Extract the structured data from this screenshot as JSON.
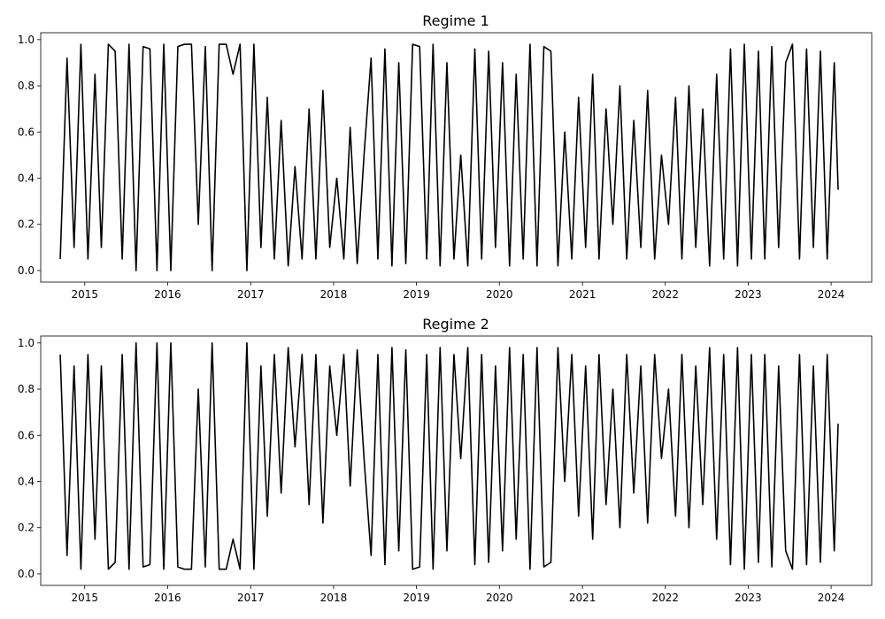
{
  "chart_data": [
    {
      "type": "line",
      "title": "Regime 1",
      "xlabel": "",
      "ylabel": "",
      "xlim": [
        "2014-06-21",
        "2024-06-28"
      ],
      "ylim": [
        -0.05,
        1.03
      ],
      "x_ticks": [
        "2015",
        "2016",
        "2017",
        "2018",
        "2019",
        "2020",
        "2021",
        "2022",
        "2023",
        "2024"
      ],
      "y_ticks": [
        "0.0",
        "0.2",
        "0.4",
        "0.6",
        "0.8",
        "1.0"
      ],
      "grid": false,
      "color": "#000000",
      "x": [
        "2014-09-15",
        "2014-10-15",
        "2014-11-15",
        "2014-12-15",
        "2015-01-15",
        "2015-02-15",
        "2015-03-15",
        "2015-04-15",
        "2015-05-15",
        "2015-06-15",
        "2015-07-15",
        "2015-08-15",
        "2015-09-15",
        "2015-10-15",
        "2015-11-15",
        "2015-12-15",
        "2016-01-15",
        "2016-02-15",
        "2016-03-15",
        "2016-04-15",
        "2016-05-15",
        "2016-06-15",
        "2016-07-15",
        "2016-08-15",
        "2016-09-15",
        "2016-10-15",
        "2016-11-15",
        "2016-12-15",
        "2017-01-15",
        "2017-02-15",
        "2017-03-15",
        "2017-04-15",
        "2017-05-15",
        "2017-06-15",
        "2017-07-15",
        "2017-08-15",
        "2017-09-15",
        "2017-10-15",
        "2017-11-15",
        "2017-12-15",
        "2018-01-15",
        "2018-02-15",
        "2018-03-15",
        "2018-04-15",
        "2018-05-15",
        "2018-06-15",
        "2018-07-15",
        "2018-08-15",
        "2018-09-15",
        "2018-10-15",
        "2018-11-15",
        "2018-12-15",
        "2019-01-15",
        "2019-02-15",
        "2019-03-15",
        "2019-04-15",
        "2019-05-15",
        "2019-06-15",
        "2019-07-15",
        "2019-08-15",
        "2019-09-15",
        "2019-10-15",
        "2019-11-15",
        "2019-12-15",
        "2020-01-15",
        "2020-02-15",
        "2020-03-15",
        "2020-04-15",
        "2020-05-15",
        "2020-06-15",
        "2020-07-15",
        "2020-08-15",
        "2020-09-15",
        "2020-10-15",
        "2020-11-15",
        "2020-12-15",
        "2021-01-15",
        "2021-02-15",
        "2021-03-15",
        "2021-04-15",
        "2021-05-15",
        "2021-06-15",
        "2021-07-15",
        "2021-08-15",
        "2021-09-15",
        "2021-10-15",
        "2021-11-15",
        "2021-12-15",
        "2022-01-15",
        "2022-02-15",
        "2022-03-15",
        "2022-04-15",
        "2022-05-15",
        "2022-06-15",
        "2022-07-15",
        "2022-08-15",
        "2022-09-15",
        "2022-10-15",
        "2022-11-15",
        "2022-12-15",
        "2023-01-15",
        "2023-02-15",
        "2023-03-15",
        "2023-04-15",
        "2023-05-15",
        "2023-06-15",
        "2023-07-15",
        "2023-08-15",
        "2023-09-15",
        "2023-10-15",
        "2023-11-15",
        "2023-12-15",
        "2024-01-15",
        "2024-02-01"
      ],
      "y": [
        0.05,
        0.92,
        0.1,
        0.98,
        0.05,
        0.85,
        0.1,
        0.98,
        0.95,
        0.05,
        0.98,
        0.0,
        0.97,
        0.96,
        0.0,
        0.98,
        0.0,
        0.97,
        0.98,
        0.98,
        0.2,
        0.97,
        0.0,
        0.98,
        0.98,
        0.85,
        0.98,
        0.0,
        0.98,
        0.1,
        0.75,
        0.05,
        0.65,
        0.02,
        0.45,
        0.05,
        0.7,
        0.05,
        0.78,
        0.1,
        0.4,
        0.05,
        0.62,
        0.03,
        0.5,
        0.92,
        0.05,
        0.96,
        0.02,
        0.9,
        0.03,
        0.98,
        0.97,
        0.05,
        0.98,
        0.02,
        0.9,
        0.05,
        0.5,
        0.02,
        0.96,
        0.05,
        0.95,
        0.1,
        0.9,
        0.02,
        0.85,
        0.05,
        0.98,
        0.02,
        0.97,
        0.95,
        0.02,
        0.6,
        0.05,
        0.75,
        0.1,
        0.85,
        0.05,
        0.7,
        0.2,
        0.8,
        0.05,
        0.65,
        0.1,
        0.78,
        0.05,
        0.5,
        0.2,
        0.75,
        0.05,
        0.8,
        0.1,
        0.7,
        0.02,
        0.85,
        0.05,
        0.96,
        0.02,
        0.98,
        0.05,
        0.95,
        0.05,
        0.97,
        0.1,
        0.9,
        0.98,
        0.05,
        0.96,
        0.1,
        0.95,
        0.05,
        0.9,
        0.35
      ]
    },
    {
      "type": "line",
      "title": "Regime 2",
      "xlabel": "",
      "ylabel": "",
      "xlim": [
        "2014-06-21",
        "2024-06-28"
      ],
      "ylim": [
        -0.05,
        1.03
      ],
      "x_ticks": [
        "2015",
        "2016",
        "2017",
        "2018",
        "2019",
        "2020",
        "2021",
        "2022",
        "2023",
        "2024"
      ],
      "y_ticks": [
        "0.0",
        "0.2",
        "0.4",
        "0.6",
        "0.8",
        "1.0"
      ],
      "grid": false,
      "color": "#000000",
      "x": [
        "2014-09-15",
        "2014-10-15",
        "2014-11-15",
        "2014-12-15",
        "2015-01-15",
        "2015-02-15",
        "2015-03-15",
        "2015-04-15",
        "2015-05-15",
        "2015-06-15",
        "2015-07-15",
        "2015-08-15",
        "2015-09-15",
        "2015-10-15",
        "2015-11-15",
        "2015-12-15",
        "2016-01-15",
        "2016-02-15",
        "2016-03-15",
        "2016-04-15",
        "2016-05-15",
        "2016-06-15",
        "2016-07-15",
        "2016-08-15",
        "2016-09-15",
        "2016-10-15",
        "2016-11-15",
        "2016-12-15",
        "2017-01-15",
        "2017-02-15",
        "2017-03-15",
        "2017-04-15",
        "2017-05-15",
        "2017-06-15",
        "2017-07-15",
        "2017-08-15",
        "2017-09-15",
        "2017-10-15",
        "2017-11-15",
        "2017-12-15",
        "2018-01-15",
        "2018-02-15",
        "2018-03-15",
        "2018-04-15",
        "2018-05-15",
        "2018-06-15",
        "2018-07-15",
        "2018-08-15",
        "2018-09-15",
        "2018-10-15",
        "2018-11-15",
        "2018-12-15",
        "2019-01-15",
        "2019-02-15",
        "2019-03-15",
        "2019-04-15",
        "2019-05-15",
        "2019-06-15",
        "2019-07-15",
        "2019-08-15",
        "2019-09-15",
        "2019-10-15",
        "2019-11-15",
        "2019-12-15",
        "2020-01-15",
        "2020-02-15",
        "2020-03-15",
        "2020-04-15",
        "2020-05-15",
        "2020-06-15",
        "2020-07-15",
        "2020-08-15",
        "2020-09-15",
        "2020-10-15",
        "2020-11-15",
        "2020-12-15",
        "2021-01-15",
        "2021-02-15",
        "2021-03-15",
        "2021-04-15",
        "2021-05-15",
        "2021-06-15",
        "2021-07-15",
        "2021-08-15",
        "2021-09-15",
        "2021-10-15",
        "2021-11-15",
        "2021-12-15",
        "2022-01-15",
        "2022-02-15",
        "2022-03-15",
        "2022-04-15",
        "2022-05-15",
        "2022-06-15",
        "2022-07-15",
        "2022-08-15",
        "2022-09-15",
        "2022-10-15",
        "2022-11-15",
        "2022-12-15",
        "2023-01-15",
        "2023-02-15",
        "2023-03-15",
        "2023-04-15",
        "2023-05-15",
        "2023-06-15",
        "2023-07-15",
        "2023-08-15",
        "2023-09-15",
        "2023-10-15",
        "2023-11-15",
        "2023-12-15",
        "2024-01-15",
        "2024-02-01"
      ],
      "y": [
        0.95,
        0.08,
        0.9,
        0.02,
        0.95,
        0.15,
        0.9,
        0.02,
        0.05,
        0.95,
        0.02,
        1.0,
        0.03,
        0.04,
        1.0,
        0.02,
        1.0,
        0.03,
        0.02,
        0.02,
        0.8,
        0.03,
        1.0,
        0.02,
        0.02,
        0.15,
        0.02,
        1.0,
        0.02,
        0.9,
        0.25,
        0.95,
        0.35,
        0.98,
        0.55,
        0.95,
        0.3,
        0.95,
        0.22,
        0.9,
        0.6,
        0.95,
        0.38,
        0.97,
        0.5,
        0.08,
        0.95,
        0.04,
        0.98,
        0.1,
        0.97,
        0.02,
        0.03,
        0.95,
        0.02,
        0.98,
        0.1,
        0.95,
        0.5,
        0.98,
        0.04,
        0.95,
        0.05,
        0.9,
        0.1,
        0.98,
        0.15,
        0.95,
        0.02,
        0.98,
        0.03,
        0.05,
        0.98,
        0.4,
        0.95,
        0.25,
        0.9,
        0.15,
        0.95,
        0.3,
        0.8,
        0.2,
        0.95,
        0.35,
        0.9,
        0.22,
        0.95,
        0.5,
        0.8,
        0.25,
        0.95,
        0.2,
        0.9,
        0.3,
        0.98,
        0.15,
        0.95,
        0.04,
        0.98,
        0.02,
        0.95,
        0.05,
        0.95,
        0.03,
        0.9,
        0.1,
        0.02,
        0.95,
        0.04,
        0.9,
        0.05,
        0.95,
        0.1,
        0.65
      ]
    }
  ]
}
